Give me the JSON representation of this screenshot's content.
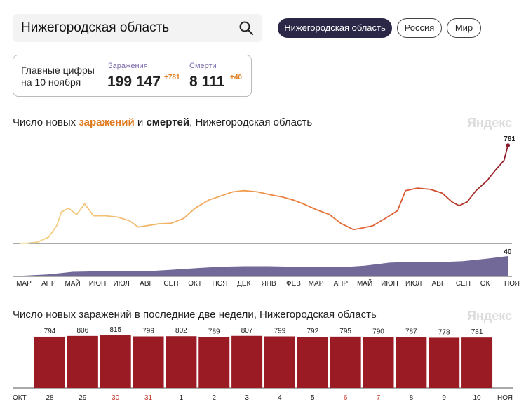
{
  "search": {
    "value": "Нижегородская область"
  },
  "tabs": [
    {
      "label": "Нижегородская область",
      "active": true
    },
    {
      "label": "Россия",
      "active": false
    },
    {
      "label": "Мир",
      "active": false
    }
  ],
  "summary": {
    "title": "Главные цифры на 10 ноября",
    "infections_label": "Заражения",
    "infections_value": "199 147",
    "infections_delta": "+781",
    "deaths_label": "Смерти",
    "deaths_value": "8 111",
    "deaths_delta": "+40"
  },
  "chart1": {
    "title_prefix": "Число новых ",
    "title_infections": "заражений",
    "title_and": " и ",
    "title_deaths": "смертей",
    "title_suffix": ", Нижегородская область",
    "watermark": "Яндекс",
    "last_infections_label": "781",
    "last_deaths_label": "40"
  },
  "chart2": {
    "title": "Число новых заражений в последние две недели, Нижегородская область",
    "watermark": "Яндекс"
  },
  "colors": {
    "bar": "#9b1b24",
    "deaths_area": "#5b4f86",
    "accent": "#e07a1e",
    "pill_active": "#2a2846"
  },
  "chart_data": [
    {
      "type": "line",
      "series": [
        {
          "name": "Заражения",
          "x": [
            "2020-03-10",
            "2020-03-20",
            "2020-04-01",
            "2020-04-15",
            "2020-04-25",
            "2020-05-01",
            "2020-05-10",
            "2020-05-20",
            "2020-05-30",
            "2020-06-10",
            "2020-06-25",
            "2020-07-10",
            "2020-07-25",
            "2020-08-05",
            "2020-08-15",
            "2020-08-30",
            "2020-09-15",
            "2020-10-01",
            "2020-10-15",
            "2020-11-01",
            "2020-11-15",
            "2020-12-01",
            "2020-12-15",
            "2021-01-01",
            "2021-01-15",
            "2021-02-01",
            "2021-02-15",
            "2021-03-01",
            "2021-03-15",
            "2021-04-01",
            "2021-04-15",
            "2021-05-01",
            "2021-05-10",
            "2021-05-25",
            "2021-06-10",
            "2021-06-25",
            "2021-07-05",
            "2021-07-20",
            "2021-08-05",
            "2021-08-20",
            "2021-09-01",
            "2021-09-10",
            "2021-09-20",
            "2021-10-01",
            "2021-10-15",
            "2021-10-25",
            "2021-11-05",
            "2021-11-10"
          ],
          "values": [
            0,
            3,
            10,
            50,
            140,
            250,
            280,
            230,
            315,
            220,
            220,
            210,
            180,
            130,
            140,
            155,
            160,
            200,
            280,
            345,
            375,
            410,
            420,
            410,
            390,
            370,
            345,
            310,
            270,
            230,
            160,
            110,
            120,
            140,
            200,
            260,
            420,
            440,
            430,
            400,
            330,
            300,
            330,
            420,
            500,
            580,
            660,
            781
          ]
        },
        {
          "name": "Смерти",
          "x": [
            "2020-03-10",
            "2020-04-15",
            "2020-05-15",
            "2020-06-15",
            "2020-07-15",
            "2020-08-15",
            "2020-09-15",
            "2020-10-15",
            "2020-11-15",
            "2020-12-15",
            "2021-01-15",
            "2021-02-15",
            "2021-03-15",
            "2021-04-15",
            "2021-05-15",
            "2021-06-15",
            "2021-07-15",
            "2021-08-15",
            "2021-09-15",
            "2021-10-15",
            "2021-11-10"
          ],
          "values": [
            1,
            4,
            9,
            10,
            10,
            10,
            13,
            16,
            19,
            20,
            20,
            19,
            19,
            18,
            21,
            27,
            29,
            28,
            30,
            35,
            40
          ]
        }
      ],
      "xticks": [
        "МАР",
        "АПР",
        "МАЙ",
        "ИЮН",
        "ИЮЛ",
        "АВГ",
        "СЕН",
        "ОКТ",
        "НОЯ",
        "ДЕК",
        "ЯНВ",
        "ФЕВ",
        "МАР",
        "АПР",
        "МАЙ",
        "ИЮН",
        "ИЮЛ",
        "АВГ",
        "СЕН",
        "ОКТ",
        "НОЯ"
      ]
    },
    {
      "type": "bar",
      "categories": [
        "28",
        "29",
        "30",
        "31",
        "1",
        "2",
        "3",
        "4",
        "5",
        "6",
        "7",
        "8",
        "9",
        "10"
      ],
      "values": [
        794,
        806,
        815,
        799,
        802,
        789,
        807,
        799,
        792,
        795,
        790,
        787,
        778,
        781
      ],
      "weekend": [
        false,
        false,
        true,
        true,
        false,
        false,
        false,
        false,
        false,
        true,
        true,
        false,
        false,
        false
      ],
      "month_left": "ОКТ",
      "month_right": "НОЯ",
      "ylim": [
        0,
        900
      ]
    }
  ]
}
